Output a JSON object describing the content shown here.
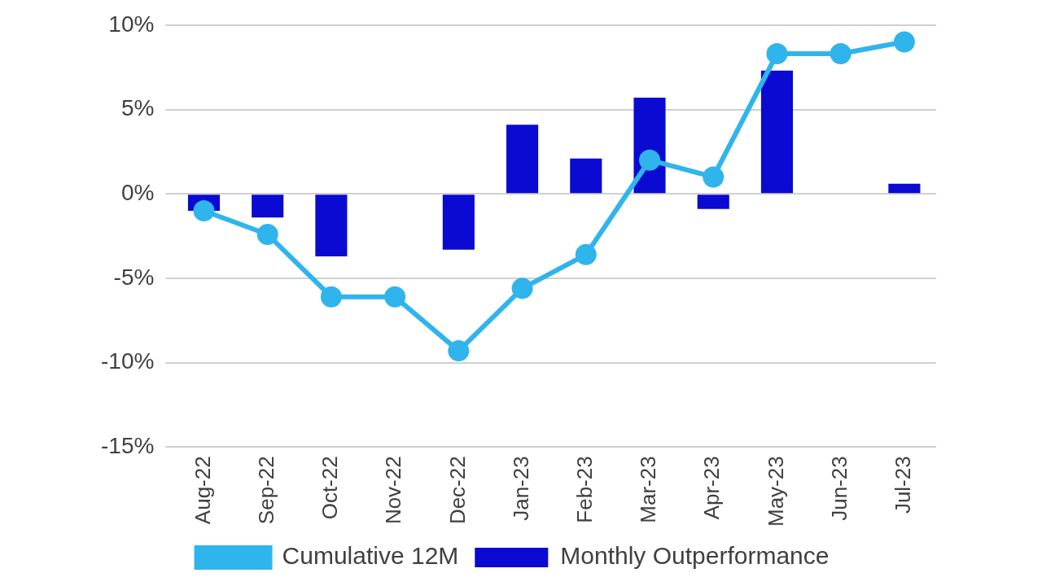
{
  "chart_data": {
    "type": "bar",
    "categories": [
      "Aug-22",
      "Sep-22",
      "Oct-22",
      "Nov-22",
      "Dec-22",
      "Jan-23",
      "Feb-23",
      "Mar-23",
      "Apr-23",
      "May-23",
      "Jun-23",
      "Jul-23"
    ],
    "series": [
      {
        "name": "Monthly Outperformance",
        "type": "bar",
        "color": "#0a0ad2",
        "values": [
          -1.0,
          -1.4,
          -3.7,
          0,
          -3.3,
          4.1,
          2.1,
          5.7,
          -0.9,
          7.3,
          0,
          0.6
        ]
      },
      {
        "name": "Cumulative 12M",
        "type": "line",
        "color": "#30b4ec",
        "marker": "circle",
        "line_style": "solid",
        "values": [
          -1.0,
          -2.4,
          -6.1,
          -6.1,
          -9.3,
          -5.6,
          -3.6,
          2.0,
          1.0,
          8.3,
          8.3,
          9.0
        ]
      }
    ],
    "ylim": [
      -15,
      10
    ],
    "yticks": [
      {
        "value": -15,
        "label": "-15%"
      },
      {
        "value": -10,
        "label": "-10%"
      },
      {
        "value": -5,
        "label": "-5%"
      },
      {
        "value": 0,
        "label": "0%"
      },
      {
        "value": 5,
        "label": "5%"
      },
      {
        "value": 10,
        "label": "10%"
      }
    ],
    "grid": true,
    "legend": "bottom"
  }
}
